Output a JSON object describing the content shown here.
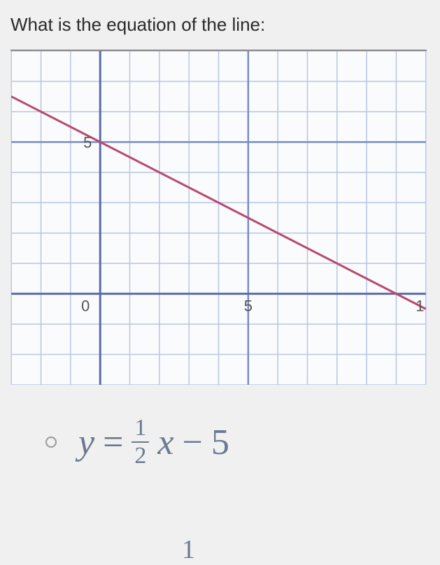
{
  "question": {
    "text": "What is the equation of the line:"
  },
  "chart": {
    "type": "line",
    "background_color": "#fafbfc",
    "grid_color": "#b8c5e0",
    "grid_width": 1.5,
    "major_grid_color": "#7a8bc4",
    "major_grid_width": 2.5,
    "axis_color": "#5a6ba8",
    "axis_width": 3,
    "xlim": [
      -3,
      11
    ],
    "ylim": [
      -3,
      8
    ],
    "x_major_ticks": [
      0,
      5
    ],
    "y_major_ticks": [
      5
    ],
    "x_tick_labels": {
      "0": "0",
      "5": "5",
      "10.8": "1"
    },
    "y_tick_labels": {
      "5": "5"
    },
    "tick_label_color": "#555",
    "tick_label_fontsize": 22,
    "line": {
      "points": [
        [
          -3,
          6.5
        ],
        [
          11,
          -0.5
        ]
      ],
      "color": "#b84a6e",
      "width": 3
    }
  },
  "answer": {
    "equation": {
      "var_y": "y",
      "equals": "=",
      "frac_num": "1",
      "frac_den": "2",
      "var_x": "x",
      "minus": "−",
      "constant": "5"
    },
    "selected": false,
    "text_color": "#6b7a8f"
  },
  "partial_next": "1"
}
